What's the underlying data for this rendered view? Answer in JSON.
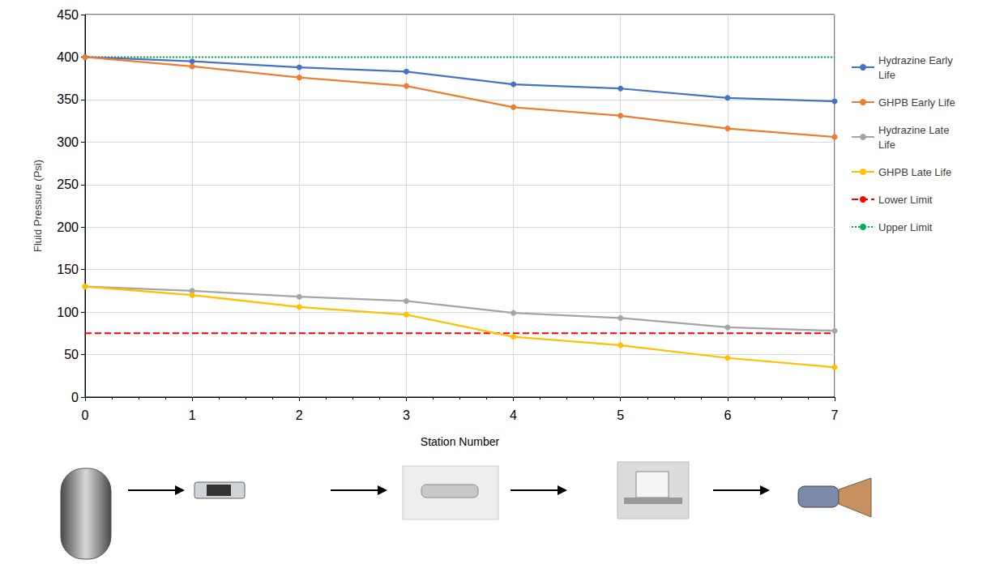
{
  "chart_data": {
    "type": "line",
    "x_label": "Station Number",
    "y_label": "Fluid Pressure (Psi)",
    "x": [
      0,
      1,
      2,
      3,
      4,
      5,
      6,
      7
    ],
    "series": [
      {
        "name": "Hydrazine Early Life",
        "color": "#4472c4",
        "marker": "circle",
        "line_style": "solid",
        "values": [
          400,
          395,
          388,
          383,
          368,
          363,
          352,
          348
        ]
      },
      {
        "name": "GHPB Early Life",
        "color": "#ed7d31",
        "marker": "circle",
        "line_style": "solid",
        "values": [
          400,
          389,
          376,
          366,
          341,
          331,
          316,
          306
        ]
      },
      {
        "name": "Hydrazine Late Life",
        "color": "#a5a5a5",
        "marker": "circle",
        "line_style": "solid",
        "values": [
          130,
          125,
          118,
          113,
          99,
          93,
          82,
          78
        ]
      },
      {
        "name": "GHPB Late Life",
        "color": "#ffc000",
        "marker": "circle",
        "line_style": "solid",
        "values": [
          130,
          120,
          106,
          97,
          71,
          61,
          46,
          35
        ]
      },
      {
        "name": "Lower Limit",
        "color": "#ff0000",
        "marker": "none",
        "line_style": "dashed",
        "values": [
          75,
          75,
          75,
          75,
          75,
          75,
          75,
          75
        ]
      },
      {
        "name": "Upper Limit",
        "color": "#00b050",
        "marker": "none",
        "line_style": "dotted",
        "values": [
          400,
          400,
          400,
          400,
          400,
          400,
          400,
          400
        ]
      }
    ],
    "xlim": [
      0,
      7
    ],
    "xticks": [
      0,
      1,
      2,
      3,
      4,
      5,
      6,
      7
    ],
    "ylim": [
      0,
      450
    ],
    "yticks": [
      0,
      50,
      100,
      150,
      200,
      250,
      300,
      350,
      400,
      450
    ],
    "grid": true,
    "legend": "right"
  }
}
